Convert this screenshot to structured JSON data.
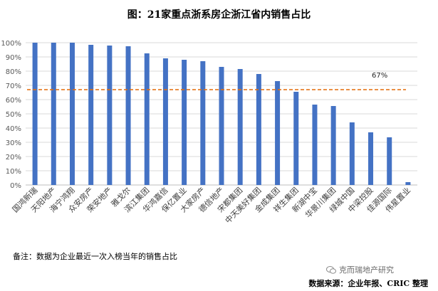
{
  "chart_data": {
    "type": "bar",
    "title": "图：21家重点浙系房企浙江省内销售占比",
    "categories": [
      "国鸿新瑞",
      "天阳地产",
      "海宁鸿翔",
      "众安房产",
      "荣安地产",
      "雅戈尔",
      "滨江集团",
      "华鸿嘉信",
      "保亿置业",
      "大家房产",
      "德信地产",
      "宋都集团",
      "中天美好集团",
      "金成集团",
      "祥生集团",
      "新湖中宝",
      "华景川集团",
      "绿城中国",
      "中梁控股",
      "佳源国际",
      "伟星置业"
    ],
    "values": [
      100,
      100,
      100,
      98.5,
      98,
      97.5,
      92.5,
      89,
      88,
      87,
      83,
      81.5,
      78,
      73,
      65.5,
      56.5,
      55.5,
      44,
      37,
      33.5,
      2
    ],
    "yticks": [
      "0%",
      "10%",
      "20%",
      "30%",
      "40%",
      "50%",
      "60%",
      "70%",
      "80%",
      "90%",
      "100%"
    ],
    "ylim": [
      0,
      100
    ],
    "reference_line": {
      "value": 67,
      "label": "67%",
      "color": "#e36c09"
    },
    "bar_color": "#4472c4",
    "xlabel": "",
    "ylabel": ""
  },
  "note": "备注：数据为企业最近一次入榜当年的销售占比",
  "watermark": "克而瑞地产研究",
  "source": "数据来源：企业年报、CRIC 整理"
}
